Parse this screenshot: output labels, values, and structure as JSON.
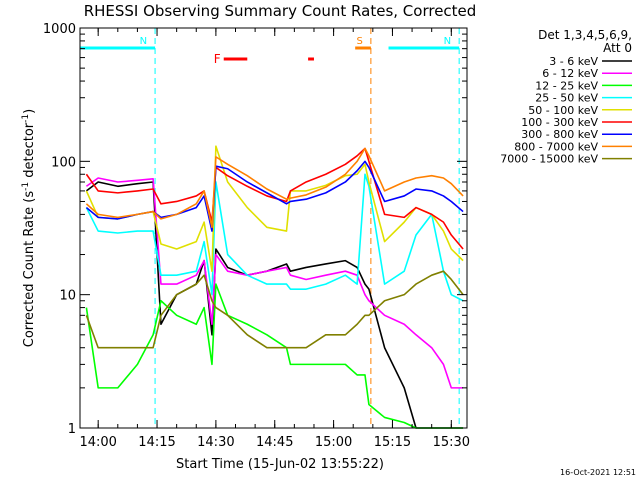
{
  "chart_data": {
    "type": "line",
    "title": "RHESSI Observing Summary Count Rates, Corrected",
    "xlabel": "Start Time (15-Jun-02 13:55:22)",
    "ylabel": "Corrected Count Rate (s⁻¹ detector⁻¹)",
    "ylabel_main": "Corrected Count Rate (s",
    "ylabel_sup1": "-1",
    "ylabel_mid": " detector",
    "ylabel_sup2": "-1",
    "ylabel_end": ")",
    "yscale": "log",
    "ylim": [
      1,
      1000
    ],
    "xlim": [
      "13:55:22",
      "15:34:00"
    ],
    "x_ticks": [
      "14:00",
      "14:15",
      "14:30",
      "14:45",
      "15:00",
      "15:15",
      "15:30"
    ],
    "y_ticks": [
      "1",
      "10",
      "100",
      "1000"
    ],
    "grid": false,
    "legend_position": "top-right",
    "legend_header": [
      "Det 1,3,4,5,6,9,",
      "Att 0"
    ],
    "footer_date": "16-Oct-2021 12:51",
    "x": [
      "13:57",
      "14:00",
      "14:05",
      "14:10",
      "14:14",
      "14:16",
      "14:20",
      "14:25",
      "14:27",
      "14:29",
      "14:30",
      "14:33",
      "14:38",
      "14:43",
      "14:48",
      "14:49",
      "14:53",
      "14:58",
      "15:03",
      "15:06",
      "15:08",
      "15:09",
      "15:13",
      "15:18",
      "15:21",
      "15:25",
      "15:28",
      "15:30",
      "15:33"
    ],
    "series": [
      {
        "name": "3 - 6 keV",
        "color": "#000000",
        "values": [
          60,
          70,
          65,
          68,
          70,
          6,
          10,
          12,
          18,
          5,
          22,
          16,
          14,
          15,
          17,
          15,
          16,
          17,
          18,
          16,
          12,
          11,
          4,
          2,
          1,
          1,
          1,
          1,
          1
        ]
      },
      {
        "name": "6 - 12 keV",
        "color": "#ff00ff",
        "values": [
          65,
          75,
          70,
          72,
          74,
          12,
          12,
          14,
          18,
          6,
          20,
          15,
          14,
          15,
          16,
          14,
          13,
          14,
          15,
          14,
          10,
          9,
          7,
          6,
          5,
          4,
          3,
          2,
          2
        ]
      },
      {
        "name": "12 - 25 keV",
        "color": "#00ff00",
        "values": [
          8,
          2,
          2,
          3,
          5,
          9,
          7,
          6,
          8,
          3,
          12,
          7,
          6,
          5,
          4,
          3,
          3,
          3,
          3,
          2.5,
          2.5,
          1.5,
          1.2,
          1.1,
          1,
          1,
          1,
          1,
          1
        ]
      },
      {
        "name": "25 - 50 keV",
        "color": "#00ffff",
        "values": [
          45,
          30,
          29,
          30,
          30,
          14,
          14,
          15,
          25,
          10,
          70,
          20,
          14,
          12,
          12,
          11,
          11,
          12,
          14,
          12,
          80,
          65,
          12,
          15,
          28,
          40,
          15,
          10,
          9
        ]
      },
      {
        "name": "50 - 100 keV",
        "color": "#e0e000",
        "values": [
          60,
          38,
          37,
          40,
          42,
          24,
          22,
          25,
          35,
          15,
          130,
          70,
          45,
          32,
          30,
          60,
          60,
          66,
          78,
          80,
          95,
          70,
          25,
          35,
          45,
          40,
          30,
          22,
          18
        ]
      },
      {
        "name": "100 - 300 keV",
        "color": "#ff0000",
        "values": [
          80,
          60,
          58,
          60,
          62,
          48,
          50,
          55,
          60,
          35,
          90,
          78,
          65,
          55,
          50,
          60,
          70,
          80,
          95,
          110,
          125,
          100,
          40,
          38,
          45,
          40,
          35,
          28,
          22
        ]
      },
      {
        "name": "300 - 800 keV",
        "color": "#0000ff",
        "values": [
          45,
          38,
          37,
          40,
          42,
          38,
          40,
          45,
          55,
          30,
          92,
          88,
          70,
          58,
          48,
          50,
          52,
          58,
          70,
          85,
          100,
          90,
          50,
          55,
          62,
          60,
          55,
          50,
          42
        ]
      },
      {
        "name": "800 - 7000 keV",
        "color": "#ff8000",
        "values": [
          48,
          40,
          38,
          40,
          42,
          37,
          40,
          48,
          60,
          32,
          108,
          95,
          78,
          62,
          52,
          53,
          56,
          64,
          80,
          100,
          125,
          110,
          60,
          70,
          75,
          78,
          75,
          68,
          55
        ]
      },
      {
        "name": "7000 - 15000 keV",
        "color": "#808000",
        "values": [
          7,
          4,
          4,
          4,
          4,
          7,
          10,
          12,
          14,
          9,
          8,
          7,
          5,
          4,
          4,
          4,
          4,
          5,
          5,
          6,
          7,
          7,
          9,
          10,
          12,
          14,
          15,
          13,
          10
        ]
      }
    ],
    "annotations": [
      {
        "label": "N",
        "color": "#00ffff",
        "line_from": "13:55:22",
        "line_to": "14:14:30",
        "dashed_at": "14:14:30"
      },
      {
        "label": "N",
        "color": "#00ffff",
        "line_from": "15:14:00",
        "line_to": "15:32:00",
        "dashed_at": "15:32:00"
      },
      {
        "label": "F",
        "color": "#ff0000",
        "segments": [
          [
            "14:32:00",
            "14:38:00"
          ],
          [
            "14:53:30",
            "14:55:00"
          ]
        ]
      },
      {
        "label": "S",
        "color": "#ff8000",
        "line_from": "15:05:30",
        "line_to": "15:09:30",
        "dashed_at": "15:09:30"
      }
    ]
  }
}
